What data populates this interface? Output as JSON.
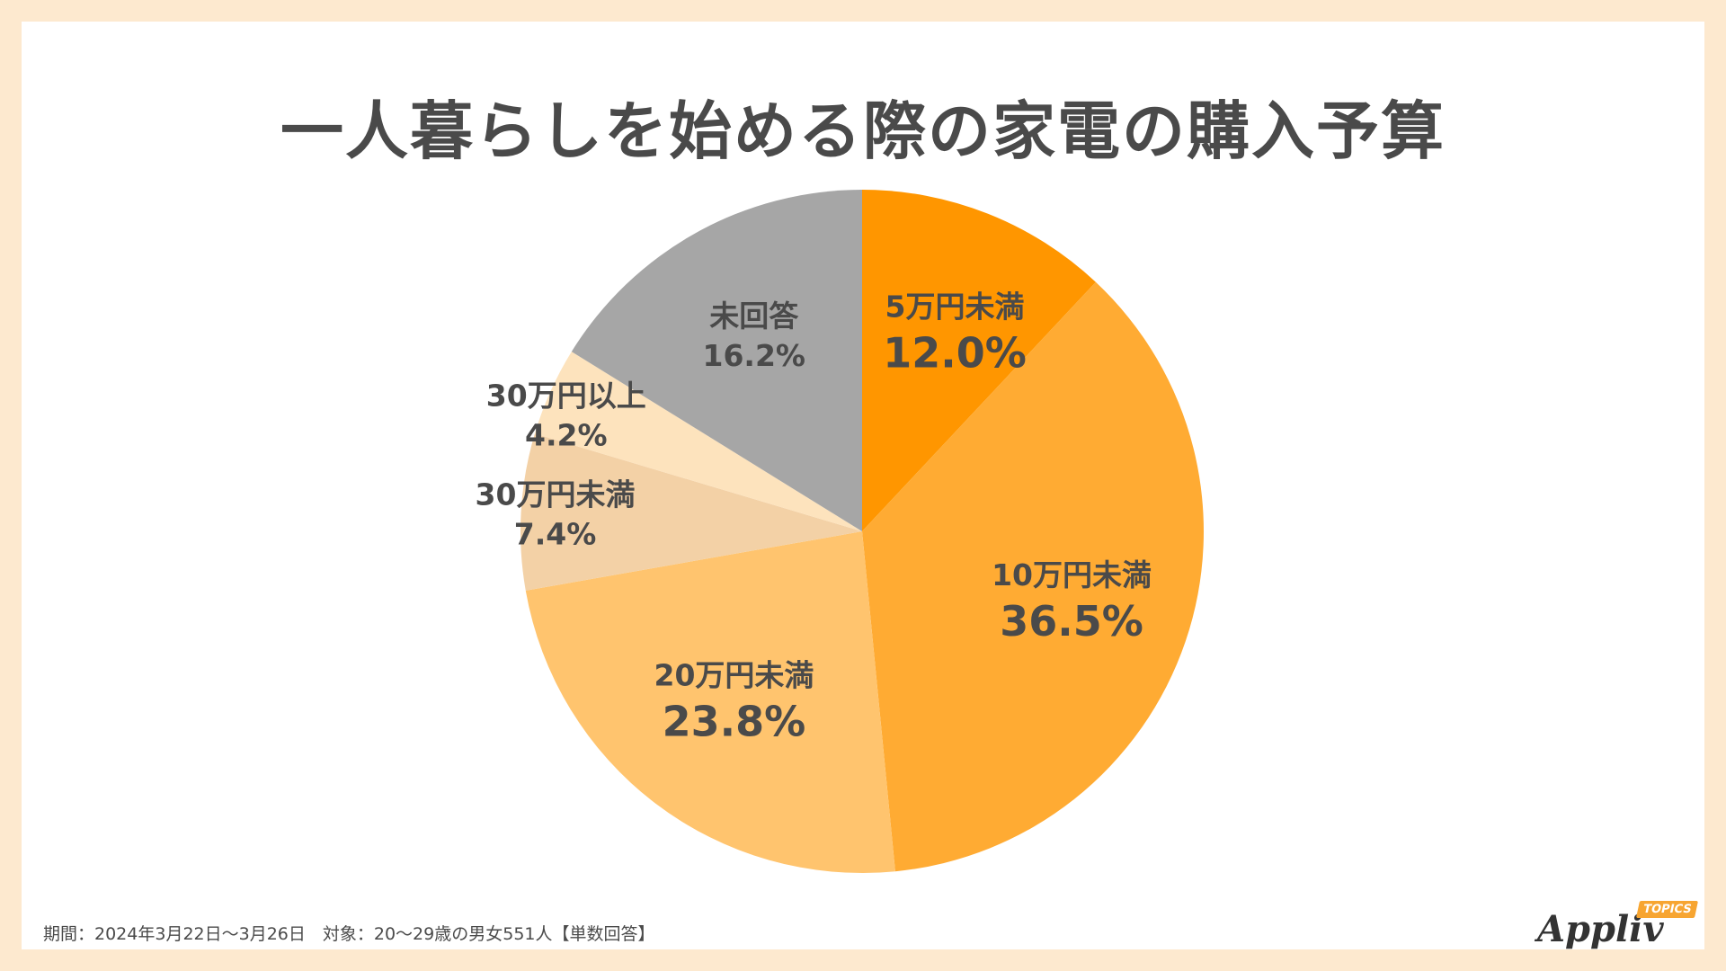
{
  "header": {
    "title": "一人暮らしを始める際の家電の購入予算"
  },
  "chart_data": {
    "type": "pie",
    "title": "一人暮らしを始める際の家電の購入予算",
    "start_angle_deg": 0,
    "direction": "clockwise",
    "slices": [
      {
        "label": "5万円未満",
        "value": 12.0,
        "value_text": "12.0%",
        "color": "#ff9600",
        "emphasis": true
      },
      {
        "label": "10万円未満",
        "value": 36.5,
        "value_text": "36.5%",
        "color": "#ffab33",
        "emphasis": true
      },
      {
        "label": "20万円未満",
        "value": 23.8,
        "value_text": "23.8%",
        "color": "#ffc46e",
        "emphasis": true
      },
      {
        "label": "30万円未満",
        "value": 7.4,
        "value_text": "7.4%",
        "color": "#f3d1a6",
        "emphasis": false
      },
      {
        "label": "30万円以上",
        "value": 4.2,
        "value_text": "4.2%",
        "color": "#fde3bd",
        "emphasis": false
      },
      {
        "label": "未回答",
        "value": 16.2,
        "value_text": "16.2%",
        "color": "#a6a6a6",
        "emphasis": false
      }
    ]
  },
  "footer": {
    "note": "期間：2024年3月22日～3月26日　対象：20～29歳の男女551人【単数回答】"
  },
  "logo": {
    "name": "Appliv",
    "badge": "TOPICS"
  }
}
